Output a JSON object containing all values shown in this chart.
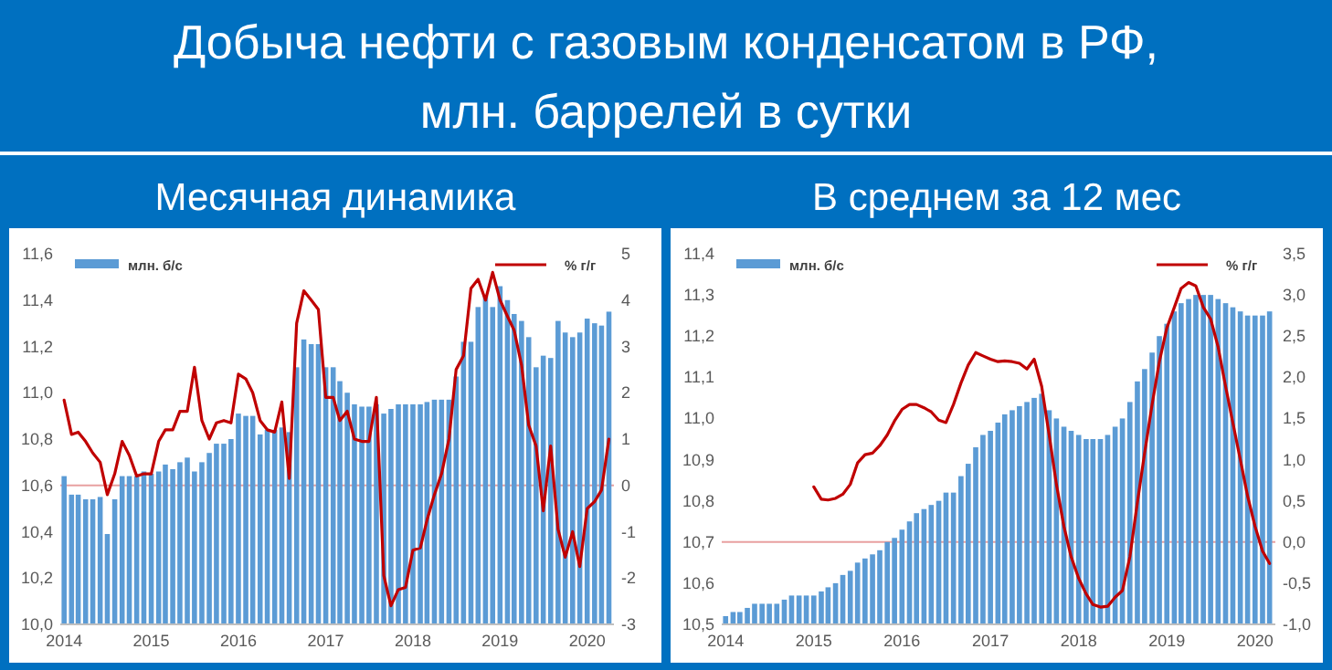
{
  "chart_data": [
    {
      "type": "bar",
      "title": "Добыча нефти с газовым конденсатом в РФ, млн. баррелей в сутки",
      "subtitle": "Месячная динамика",
      "x": [
        "2014-01",
        "2014-02",
        "2014-03",
        "2014-04",
        "2014-05",
        "2014-06",
        "2014-07",
        "2014-08",
        "2014-09",
        "2014-10",
        "2014-11",
        "2014-12",
        "2015-01",
        "2015-02",
        "2015-03",
        "2015-04",
        "2015-05",
        "2015-06",
        "2015-07",
        "2015-08",
        "2015-09",
        "2015-10",
        "2015-11",
        "2015-12",
        "2016-01",
        "2016-02",
        "2016-03",
        "2016-04",
        "2016-05",
        "2016-06",
        "2016-07",
        "2016-08",
        "2016-09",
        "2016-10",
        "2016-11",
        "2016-12",
        "2017-01",
        "2017-02",
        "2017-03",
        "2017-04",
        "2017-05",
        "2017-06",
        "2017-07",
        "2017-08",
        "2017-09",
        "2017-10",
        "2017-11",
        "2017-12",
        "2018-01",
        "2018-02",
        "2018-03",
        "2018-04",
        "2018-05",
        "2018-06",
        "2018-07",
        "2018-08",
        "2018-09",
        "2018-10",
        "2018-11",
        "2018-12",
        "2019-01",
        "2019-02",
        "2019-03",
        "2019-04",
        "2019-05",
        "2019-06",
        "2019-07",
        "2019-08",
        "2019-09",
        "2019-10",
        "2019-11",
        "2019-12",
        "2020-01",
        "2020-02",
        "2020-03",
        "2020-04"
      ],
      "series": [
        {
          "name": "млн. б/с",
          "color": "#5b9bd5",
          "values": [
            10.64,
            10.56,
            10.56,
            10.54,
            10.54,
            10.55,
            10.39,
            10.54,
            10.64,
            10.64,
            10.64,
            10.66,
            10.65,
            10.66,
            10.69,
            10.67,
            10.7,
            10.72,
            10.66,
            10.7,
            10.74,
            10.78,
            10.78,
            10.8,
            10.91,
            10.9,
            10.9,
            10.82,
            10.84,
            10.84,
            10.85,
            10.83,
            11.11,
            11.23,
            11.21,
            11.21,
            11.11,
            11.11,
            11.05,
            11.0,
            10.95,
            10.94,
            10.94,
            10.95,
            10.91,
            10.93,
            10.95,
            10.95,
            10.95,
            10.95,
            10.96,
            10.97,
            10.97,
            10.97,
            11.07,
            11.22,
            11.22,
            11.37,
            11.42,
            11.37,
            11.46,
            11.4,
            11.34,
            11.31,
            11.24,
            11.11,
            11.16,
            11.15,
            11.31,
            11.26,
            11.24,
            11.26,
            11.32,
            11.3,
            11.29,
            11.35
          ]
        },
        {
          "name": "% г/г",
          "type": "line",
          "axis": "y2",
          "color": "#c00000",
          "values": [
            1.84,
            1.1,
            1.15,
            0.95,
            0.7,
            0.5,
            -0.2,
            0.25,
            0.95,
            0.65,
            0.2,
            0.25,
            0.25,
            0.95,
            1.2,
            1.2,
            1.6,
            1.6,
            2.55,
            1.4,
            1.0,
            1.35,
            1.4,
            1.35,
            2.4,
            2.3,
            2.0,
            1.4,
            1.2,
            1.15,
            1.8,
            0.15,
            3.5,
            4.2,
            4.0,
            3.8,
            1.9,
            1.9,
            1.4,
            1.6,
            1.0,
            0.95,
            0.95,
            1.9,
            -1.95,
            -2.6,
            -2.25,
            -2.2,
            -1.4,
            -1.35,
            -0.75,
            -0.2,
            0.25,
            1.0,
            2.5,
            2.8,
            4.25,
            4.45,
            4.0,
            4.6,
            4.0,
            3.65,
            3.35,
            2.6,
            1.3,
            0.85,
            -0.55,
            0.85,
            -0.95,
            -1.55,
            -1.0,
            -1.75,
            -0.5,
            -0.35,
            -0.1,
            1.0
          ]
        }
      ],
      "xlim": [
        "2013-12-16",
        "2020-04-22"
      ],
      "xticks": [
        "2014",
        "2015",
        "2016",
        "2017",
        "2018",
        "2019",
        "2020"
      ],
      "ylim": [
        10.0,
        11.6
      ],
      "yticks": [
        {
          "value": 10.0,
          "label": "10,0"
        },
        {
          "value": 10.2,
          "label": "10,2"
        },
        {
          "value": 10.4,
          "label": "10,4"
        },
        {
          "value": 10.6,
          "label": "10,6"
        },
        {
          "value": 10.8,
          "label": "10,8"
        },
        {
          "value": 11.0,
          "label": "11,0"
        },
        {
          "value": 11.2,
          "label": "11,2"
        },
        {
          "value": 11.4,
          "label": "11,4"
        },
        {
          "value": 11.6,
          "label": "11,6"
        }
      ],
      "y2lim": [
        -3,
        5
      ],
      "y2ticks": [
        -3,
        -2,
        -1,
        0,
        1,
        2,
        3,
        4,
        5
      ],
      "ref_lines": [
        {
          "axis": "y2",
          "value": 0,
          "color": "#e8a0a0"
        }
      ],
      "legend": "top",
      "grid": false
    },
    {
      "type": "bar",
      "subtitle": "В среднем за 12 мес",
      "x": [
        "2014-01",
        "2014-02",
        "2014-03",
        "2014-04",
        "2014-05",
        "2014-06",
        "2014-07",
        "2014-08",
        "2014-09",
        "2014-10",
        "2014-11",
        "2014-12",
        "2015-01",
        "2015-02",
        "2015-03",
        "2015-04",
        "2015-05",
        "2015-06",
        "2015-07",
        "2015-08",
        "2015-09",
        "2015-10",
        "2015-11",
        "2015-12",
        "2016-01",
        "2016-02",
        "2016-03",
        "2016-04",
        "2016-05",
        "2016-06",
        "2016-07",
        "2016-08",
        "2016-09",
        "2016-10",
        "2016-11",
        "2016-12",
        "2017-01",
        "2017-02",
        "2017-03",
        "2017-04",
        "2017-05",
        "2017-06",
        "2017-07",
        "2017-08",
        "2017-09",
        "2017-10",
        "2017-11",
        "2017-12",
        "2018-01",
        "2018-02",
        "2018-03",
        "2018-04",
        "2018-05",
        "2018-06",
        "2018-07",
        "2018-08",
        "2018-09",
        "2018-10",
        "2018-11",
        "2018-12",
        "2019-01",
        "2019-02",
        "2019-03",
        "2019-04",
        "2019-05",
        "2019-06",
        "2019-07",
        "2019-08",
        "2019-09",
        "2019-10",
        "2019-11",
        "2019-12",
        "2020-01",
        "2020-02",
        "2020-03"
      ],
      "series": [
        {
          "name": "млн. б/с",
          "color": "#5b9bd5",
          "values": [
            10.52,
            10.53,
            10.53,
            10.54,
            10.55,
            10.55,
            10.55,
            10.55,
            10.56,
            10.57,
            10.57,
            10.57,
            10.57,
            10.58,
            10.59,
            10.6,
            10.62,
            10.63,
            10.65,
            10.66,
            10.67,
            10.68,
            10.7,
            10.71,
            10.73,
            10.75,
            10.77,
            10.78,
            10.79,
            10.8,
            10.82,
            10.82,
            10.86,
            10.89,
            10.93,
            10.96,
            10.97,
            10.99,
            11.01,
            11.02,
            11.03,
            11.04,
            11.05,
            11.06,
            11.02,
            11.0,
            10.98,
            10.97,
            10.96,
            10.95,
            10.95,
            10.95,
            10.96,
            10.98,
            11.0,
            11.04,
            11.09,
            11.12,
            11.16,
            11.2,
            11.23,
            11.26,
            11.28,
            11.29,
            11.3,
            11.3,
            11.3,
            11.29,
            11.28,
            11.27,
            11.26,
            11.25,
            11.25,
            11.25,
            11.26
          ]
        },
        {
          "name": "% г/г",
          "type": "line",
          "axis": "y2",
          "color": "#c00000",
          "values": [
            null,
            null,
            null,
            null,
            null,
            null,
            null,
            null,
            null,
            null,
            null,
            null,
            0.67,
            0.52,
            0.51,
            0.53,
            0.58,
            0.7,
            0.96,
            1.06,
            1.08,
            1.17,
            1.3,
            1.47,
            1.61,
            1.67,
            1.67,
            1.63,
            1.58,
            1.48,
            1.45,
            1.67,
            1.93,
            2.15,
            2.3,
            2.26,
            2.22,
            2.19,
            2.2,
            2.19,
            2.17,
            2.1,
            2.22,
            1.89,
            1.3,
            0.7,
            0.19,
            -0.18,
            -0.44,
            -0.63,
            -0.76,
            -0.79,
            -0.78,
            -0.67,
            -0.59,
            -0.18,
            0.48,
            1.08,
            1.67,
            2.19,
            2.6,
            2.85,
            3.08,
            3.15,
            3.11,
            2.85,
            2.71,
            2.37,
            1.89,
            1.45,
            1.0,
            0.56,
            0.19,
            -0.11,
            -0.26
          ]
        }
      ],
      "xlim": [
        "2013-12-16",
        "2020-03-25"
      ],
      "xticks": [
        "2014",
        "2015",
        "2016",
        "2017",
        "2018",
        "2019",
        "2020"
      ],
      "ylim": [
        10.5,
        11.4
      ],
      "yticks": [
        {
          "value": 10.5,
          "label": "10,5"
        },
        {
          "value": 10.6,
          "label": "10,6"
        },
        {
          "value": 10.7,
          "label": "10,7"
        },
        {
          "value": 10.8,
          "label": "10,8"
        },
        {
          "value": 10.9,
          "label": "10,9"
        },
        {
          "value": 11.0,
          "label": "11,0"
        },
        {
          "value": 11.1,
          "label": "11,1"
        },
        {
          "value": 11.2,
          "label": "11,2"
        },
        {
          "value": 11.3,
          "label": "11,3"
        },
        {
          "value": 11.4,
          "label": "11,4"
        }
      ],
      "y2lim": [
        -1.0,
        3.5
      ],
      "y2ticks": [
        {
          "value": -1.0,
          "label": "-1,0"
        },
        {
          "value": -0.5,
          "label": "-0,5"
        },
        {
          "value": 0.0,
          "label": "0,0"
        },
        {
          "value": 0.5,
          "label": "0,5"
        },
        {
          "value": 1.0,
          "label": "1,0"
        },
        {
          "value": 1.5,
          "label": "1,5"
        },
        {
          "value": 2.0,
          "label": "2,0"
        },
        {
          "value": 2.5,
          "label": "2,5"
        },
        {
          "value": 3.0,
          "label": "3,0"
        },
        {
          "value": 3.5,
          "label": "3,5"
        }
      ],
      "ref_lines": [
        {
          "axis": "y2",
          "value": 0,
          "color": "#e8a0a0"
        }
      ],
      "legend": "top",
      "grid": false
    }
  ]
}
